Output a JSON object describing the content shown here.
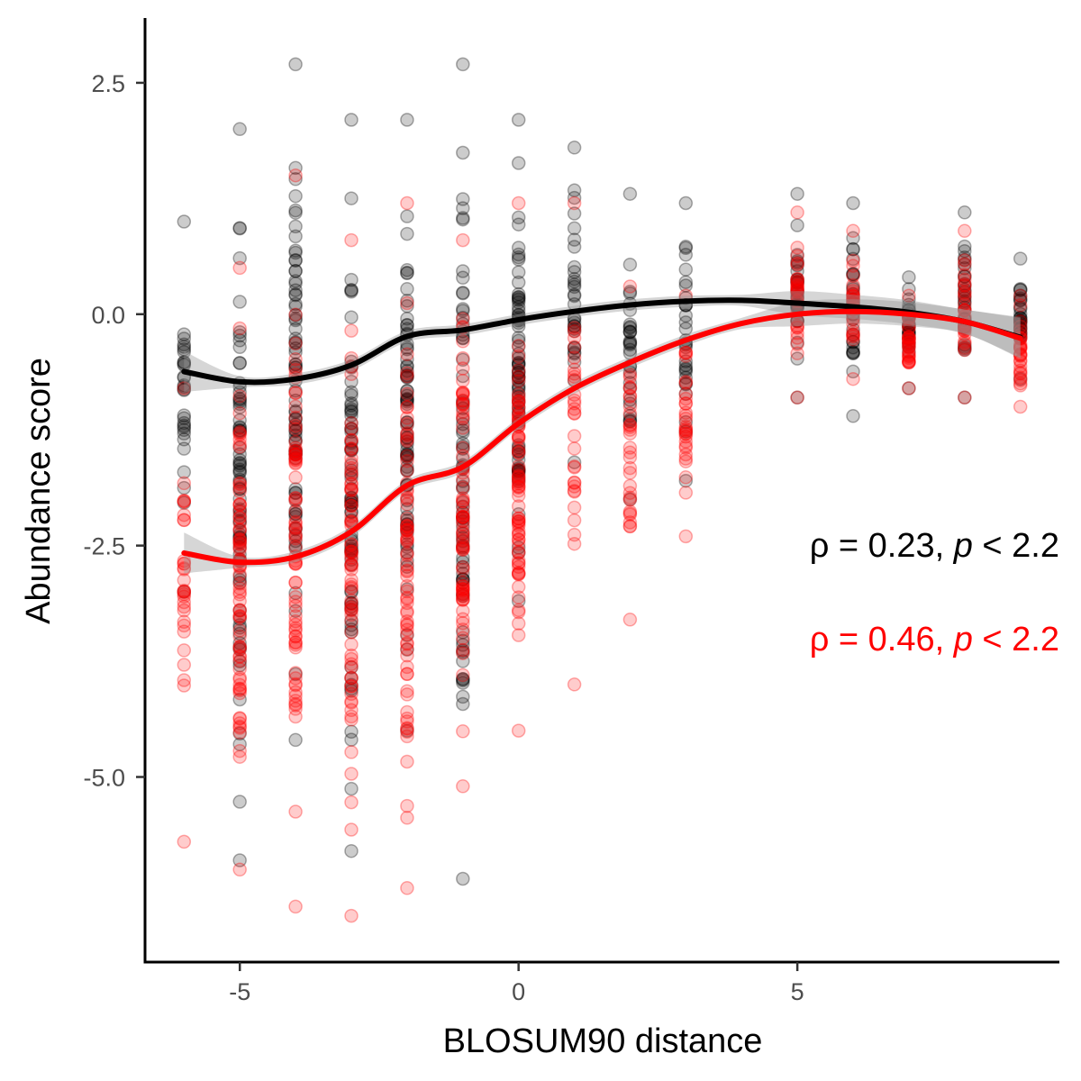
{
  "chart_data": {
    "type": "scatter",
    "title": "",
    "xlabel": "BLOSUM90 distance",
    "ylabel": "Abundance score",
    "xlim": [
      -6.7,
      9.7
    ],
    "ylim": [
      -7.0,
      3.2
    ],
    "x_ticks": [
      -5,
      0,
      5
    ],
    "x_tick_labels": [
      "-5",
      "0",
      "5"
    ],
    "y_ticks": [
      2.5,
      0.0,
      -2.5,
      -5.0
    ],
    "y_tick_labels": [
      "2.5",
      "0.0",
      "-2.5",
      "-5.0"
    ],
    "grid": false,
    "legend": "none",
    "series": [
      {
        "color": "#000000",
        "point_alpha": 0.2,
        "points": [
          {
            "x": -6,
            "ymin": -3.0,
            "ymax": 1.0
          },
          {
            "x": -5,
            "ymin": -5.9,
            "ymax": 2.0
          },
          {
            "x": -4,
            "ymin": -4.6,
            "ymax": 2.7
          },
          {
            "x": -3,
            "ymin": -5.8,
            "ymax": 2.1
          },
          {
            "x": -2,
            "ymin": -4.5,
            "ymax": 2.1
          },
          {
            "x": -1,
            "ymin": -6.1,
            "ymax": 2.7
          },
          {
            "x": 0,
            "ymin": -3.1,
            "ymax": 2.1
          },
          {
            "x": 1,
            "ymin": -1.6,
            "ymax": 1.8
          },
          {
            "x": 2,
            "ymin": -2.0,
            "ymax": 1.3
          },
          {
            "x": 3,
            "ymin": -1.8,
            "ymax": 1.2
          },
          {
            "x": 5,
            "ymin": -0.9,
            "ymax": 1.3
          },
          {
            "x": 6,
            "ymin": -1.1,
            "ymax": 1.2
          },
          {
            "x": 7,
            "ymin": -0.8,
            "ymax": 0.4
          },
          {
            "x": 8,
            "ymin": -0.9,
            "ymax": 1.1
          },
          {
            "x": 9,
            "ymin": -0.7,
            "ymax": 0.6
          }
        ],
        "smooth": {
          "x": [
            -6,
            -5,
            -4,
            -3,
            -2,
            -1,
            0,
            1,
            2,
            3,
            4,
            5,
            6,
            7,
            8,
            9
          ],
          "y": [
            -0.62,
            -0.73,
            -0.7,
            -0.55,
            -0.24,
            -0.17,
            -0.06,
            0.03,
            0.1,
            0.14,
            0.15,
            0.12,
            0.08,
            0.02,
            -0.08,
            -0.25
          ]
        }
      },
      {
        "color": "#ff0000",
        "point_alpha": 0.2,
        "points": [
          {
            "x": -6,
            "ymin": -5.7,
            "ymax": -0.8
          },
          {
            "x": -5,
            "ymin": -6.0,
            "ymax": 0.5
          },
          {
            "x": -4,
            "ymin": -6.4,
            "ymax": 1.5
          },
          {
            "x": -3,
            "ymin": -6.5,
            "ymax": 0.8
          },
          {
            "x": -2,
            "ymin": -6.2,
            "ymax": 1.2
          },
          {
            "x": -1,
            "ymin": -5.1,
            "ymax": 0.8
          },
          {
            "x": 0,
            "ymin": -4.5,
            "ymax": 1.2
          },
          {
            "x": 1,
            "ymin": -4.0,
            "ymax": 1.2
          },
          {
            "x": 2,
            "ymin": -3.3,
            "ymax": 0.3
          },
          {
            "x": 3,
            "ymin": -2.4,
            "ymax": 0.2
          },
          {
            "x": 5,
            "ymin": -0.9,
            "ymax": 1.1
          },
          {
            "x": 6,
            "ymin": -0.7,
            "ymax": 0.9
          },
          {
            "x": 7,
            "ymin": -0.8,
            "ymax": 0.2
          },
          {
            "x": 8,
            "ymin": -0.9,
            "ymax": 0.9
          },
          {
            "x": 9,
            "ymin": -1.0,
            "ymax": 0.2
          }
        ],
        "smooth": {
          "x": [
            -6,
            -5,
            -4,
            -3,
            -2,
            -1,
            0,
            1,
            2,
            3,
            4,
            5,
            6,
            7,
            8,
            9
          ],
          "y": [
            -2.58,
            -2.68,
            -2.62,
            -2.35,
            -1.85,
            -1.65,
            -1.18,
            -0.8,
            -0.52,
            -0.28,
            -0.1,
            0.0,
            0.03,
            0.0,
            -0.08,
            -0.26
          ]
        }
      }
    ],
    "annotations": [
      {
        "rho": "ρ",
        "eq1": " = 0.23, ",
        "p": "p",
        "eq2": " < 2.2",
        "color": "#000000"
      },
      {
        "rho": "ρ",
        "eq1": " = 0.46, ",
        "p": "p",
        "eq2": " < 2.2",
        "color": "#ff0000"
      }
    ]
  }
}
